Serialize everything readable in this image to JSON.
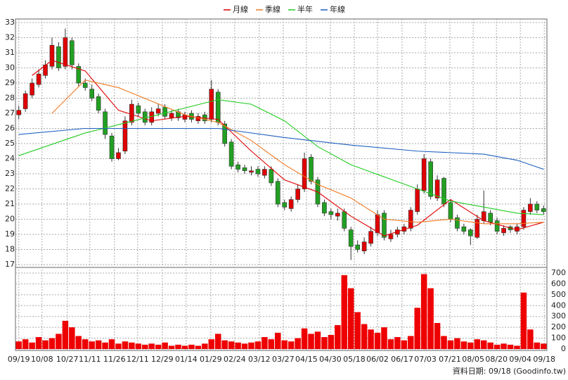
{
  "chart_data": {
    "type": "candlestick",
    "up_color": "#e00000",
    "down_color": "#22a022",
    "x": [
      0,
      1,
      2,
      3,
      4,
      5,
      6,
      7,
      8,
      9,
      10,
      11,
      12,
      13,
      14,
      15,
      16,
      17,
      18,
      19,
      20,
      21,
      22,
      23,
      24,
      25,
      26,
      27,
      28,
      29,
      30,
      31,
      32,
      33,
      34,
      35,
      36,
      37,
      38,
      39,
      40,
      41,
      42,
      43,
      44,
      45,
      46,
      47,
      48,
      49,
      50,
      51,
      52,
      53,
      54,
      55,
      56,
      57,
      58,
      59,
      60,
      61,
      62,
      63,
      64,
      65,
      66,
      67,
      68,
      69,
      70,
      71,
      72,
      73,
      74,
      75,
      76,
      77,
      78,
      79
    ],
    "open": [
      26.9,
      27.3,
      28.2,
      28.9,
      29.5,
      30.1,
      31.4,
      30.1,
      31.8,
      30.1,
      29.0,
      28.6,
      28.1,
      27.1,
      25.5,
      24.0,
      24.5,
      26.4,
      27.5,
      27.1,
      26.4,
      27.0,
      27.4,
      26.7,
      27.1,
      26.6,
      27.0,
      26.5,
      26.9,
      26.6,
      28.4,
      26.3,
      25.1,
      23.6,
      23.4,
      23.1,
      23.3,
      22.9,
      23.3,
      22.5,
      21.1,
      20.7,
      21.3,
      22.0,
      24.1,
      22.6,
      21.1,
      20.5,
      20.2,
      20.5,
      19.3,
      18.3,
      17.9,
      18.4,
      19.1,
      20.4,
      18.7,
      19.0,
      19.2,
      19.4,
      20.5,
      21.9,
      23.8,
      21.4,
      22.7,
      21.1,
      20.1,
      19.5,
      19.3,
      18.8,
      19.9,
      20.4,
      19.9,
      19.1,
      19.5,
      19.2,
      19.5,
      20.5,
      21.0,
      20.7
    ],
    "high": [
      27.5,
      28.5,
      29.3,
      29.9,
      30.5,
      32.0,
      31.7,
      32.6,
      32.0,
      30.3,
      29.3,
      28.9,
      28.3,
      27.3,
      25.7,
      24.7,
      26.8,
      27.9,
      27.7,
      27.3,
      27.4,
      27.6,
      27.6,
      27.2,
      27.3,
      27.1,
      27.2,
      27.0,
      27.1,
      29.2,
      28.6,
      26.5,
      25.3,
      23.8,
      23.6,
      23.5,
      23.5,
      23.5,
      23.5,
      22.7,
      21.3,
      21.5,
      22.3,
      24.4,
      24.3,
      22.8,
      21.3,
      20.7,
      20.7,
      20.7,
      19.5,
      18.6,
      18.8,
      19.5,
      20.6,
      20.6,
      19.3,
      19.5,
      19.7,
      20.8,
      22.3,
      24.3,
      24.0,
      22.9,
      22.8,
      21.3,
      20.3,
      19.7,
      19.4,
      20.3,
      21.9,
      20.6,
      20.1,
      19.6,
      19.6,
      19.7,
      20.8,
      21.4,
      21.2,
      20.9
    ],
    "low": [
      26.6,
      27.1,
      28.0,
      28.7,
      29.3,
      29.9,
      29.8,
      29.9,
      29.9,
      28.8,
      28.5,
      27.8,
      27.0,
      25.3,
      23.8,
      23.9,
      24.3,
      26.2,
      26.8,
      26.2,
      26.2,
      26.8,
      26.6,
      26.5,
      26.5,
      26.4,
      26.4,
      26.3,
      26.3,
      26.4,
      26.2,
      24.8,
      23.3,
      23.1,
      23.0,
      22.9,
      22.8,
      22.7,
      22.2,
      20.8,
      20.6,
      20.5,
      21.1,
      21.8,
      22.3,
      20.8,
      20.2,
      20.0,
      19.9,
      19.2,
      17.3,
      17.8,
      17.7,
      18.2,
      18.9,
      18.6,
      18.5,
      18.8,
      19.0,
      19.2,
      20.3,
      21.7,
      21.3,
      21.2,
      20.8,
      19.8,
      19.2,
      19.0,
      18.3,
      18.7,
      19.7,
      19.6,
      19.0,
      18.9,
      19.1,
      19.0,
      19.3,
      20.3,
      20.4,
      20.3
    ],
    "close": [
      27.2,
      28.3,
      29.0,
      29.6,
      30.2,
      31.5,
      30.0,
      32.0,
      30.2,
      29.0,
      28.7,
      28.0,
      27.2,
      25.6,
      24.0,
      24.4,
      26.5,
      27.6,
      27.0,
      26.4,
      27.1,
      27.3,
      26.8,
      27.0,
      26.7,
      26.9,
      26.6,
      26.8,
      26.5,
      28.6,
      26.4,
      25.0,
      23.5,
      23.3,
      23.2,
      23.2,
      23.0,
      23.3,
      22.4,
      21.0,
      20.8,
      21.3,
      22.0,
      24.0,
      22.5,
      21.0,
      20.4,
      20.3,
      20.4,
      19.4,
      18.2,
      18.0,
      18.5,
      19.2,
      20.3,
      18.8,
      19.0,
      19.3,
      19.5,
      20.6,
      22.0,
      24.0,
      21.5,
      22.6,
      21.0,
      20.0,
      19.4,
      19.2,
      18.9,
      20.0,
      20.5,
      19.8,
      19.2,
      19.4,
      19.3,
      19.5,
      20.6,
      21.0,
      20.6,
      20.5
    ],
    "series": [
      {
        "name": "月線",
        "color": "#e00000",
        "x": [
          2,
          5,
          10,
          15,
          20,
          25,
          30,
          35,
          40,
          45,
          50,
          55,
          60,
          65,
          70,
          75,
          79
        ],
        "values": [
          29.5,
          30.5,
          29.8,
          27.2,
          26.5,
          26.8,
          26.6,
          24.5,
          22.6,
          21.8,
          20.2,
          18.9,
          19.6,
          21.3,
          19.9,
          19.3,
          19.8
        ]
      },
      {
        "name": "季線",
        "color": "#f07820",
        "x": [
          5,
          10,
          15,
          20,
          25,
          30,
          35,
          40,
          45,
          50,
          55,
          60,
          65,
          70,
          75,
          79
        ],
        "values": [
          27.0,
          29.2,
          28.7,
          27.8,
          26.9,
          26.4,
          25.2,
          23.6,
          22.3,
          21.4,
          20.0,
          19.8,
          20.0,
          19.7,
          19.7,
          19.8
        ]
      },
      {
        "name": "半年",
        "color": "#22cc22",
        "x": [
          0,
          10,
          20,
          30,
          35,
          40,
          45,
          50,
          55,
          60,
          65,
          70,
          75,
          79
        ],
        "values": [
          24.2,
          25.7,
          26.8,
          27.9,
          27.6,
          26.5,
          24.8,
          23.6,
          22.8,
          22.0,
          21.2,
          20.8,
          20.4,
          20.3
        ]
      },
      {
        "name": "年線",
        "color": "#2060c0",
        "x": [
          0,
          10,
          20,
          30,
          40,
          50,
          60,
          70,
          75,
          79
        ],
        "values": [
          25.6,
          26.0,
          26.0,
          26.0,
          25.4,
          24.9,
          24.5,
          24.3,
          23.9,
          23.3
        ]
      }
    ],
    "xlim": [
      -0.5,
      79.5
    ],
    "xticks": [
      {
        "value": 0,
        "label": "09/19"
      },
      {
        "value": 3.5,
        "label": "10/08"
      },
      {
        "value": 7.3,
        "label": "10/27"
      },
      {
        "value": 10.7,
        "label": "11/11"
      },
      {
        "value": 14.4,
        "label": "11/26"
      },
      {
        "value": 17.9,
        "label": "12/11"
      },
      {
        "value": 21.6,
        "label": "12/29"
      },
      {
        "value": 25.2,
        "label": "01/14"
      },
      {
        "value": 28.9,
        "label": "01/29"
      },
      {
        "value": 32.5,
        "label": "02/24"
      },
      {
        "value": 36.2,
        "label": "03/12"
      },
      {
        "value": 39.8,
        "label": "03/27"
      },
      {
        "value": 43.3,
        "label": "04/15"
      },
      {
        "value": 46.9,
        "label": "04/30"
      },
      {
        "value": 50.5,
        "label": "05/18"
      },
      {
        "value": 54.0,
        "label": "06/02"
      },
      {
        "value": 57.7,
        "label": "06/17"
      },
      {
        "value": 61.2,
        "label": "07/03"
      },
      {
        "value": 64.9,
        "label": "07/21"
      },
      {
        "value": 68.4,
        "label": "08/05"
      },
      {
        "value": 71.9,
        "label": "08/20"
      },
      {
        "value": 75.5,
        "label": "09/04"
      },
      {
        "value": 79.1,
        "label": "09/18"
      }
    ],
    "ylim": [
      17,
      33
    ],
    "yticks": [
      17,
      18,
      19,
      20,
      21,
      22,
      23,
      24,
      25,
      26,
      27,
      28,
      29,
      30,
      31,
      32,
      33
    ],
    "volume": {
      "color": "#ee0000",
      "values": [
        70,
        90,
        60,
        110,
        80,
        100,
        140,
        260,
        200,
        120,
        90,
        70,
        80,
        60,
        90,
        50,
        70,
        60,
        50,
        40,
        50,
        40,
        60,
        30,
        40,
        30,
        40,
        30,
        50,
        90,
        140,
        80,
        70,
        60,
        50,
        60,
        70,
        110,
        90,
        150,
        80,
        70,
        100,
        190,
        140,
        160,
        110,
        130,
        220,
        680,
        560,
        340,
        230,
        180,
        150,
        200,
        90,
        110,
        80,
        120,
        380,
        690,
        560,
        240,
        120,
        80,
        100,
        70,
        60,
        90,
        80,
        60,
        40,
        50,
        40,
        30,
        520,
        180,
        60,
        50
      ],
      "ylim": [
        0,
        700
      ],
      "yticks": [
        0,
        100,
        200,
        300,
        400,
        500,
        600,
        700
      ]
    },
    "grid": true,
    "source": "資料日期: 09/18 (Goodinfo.tw)"
  }
}
